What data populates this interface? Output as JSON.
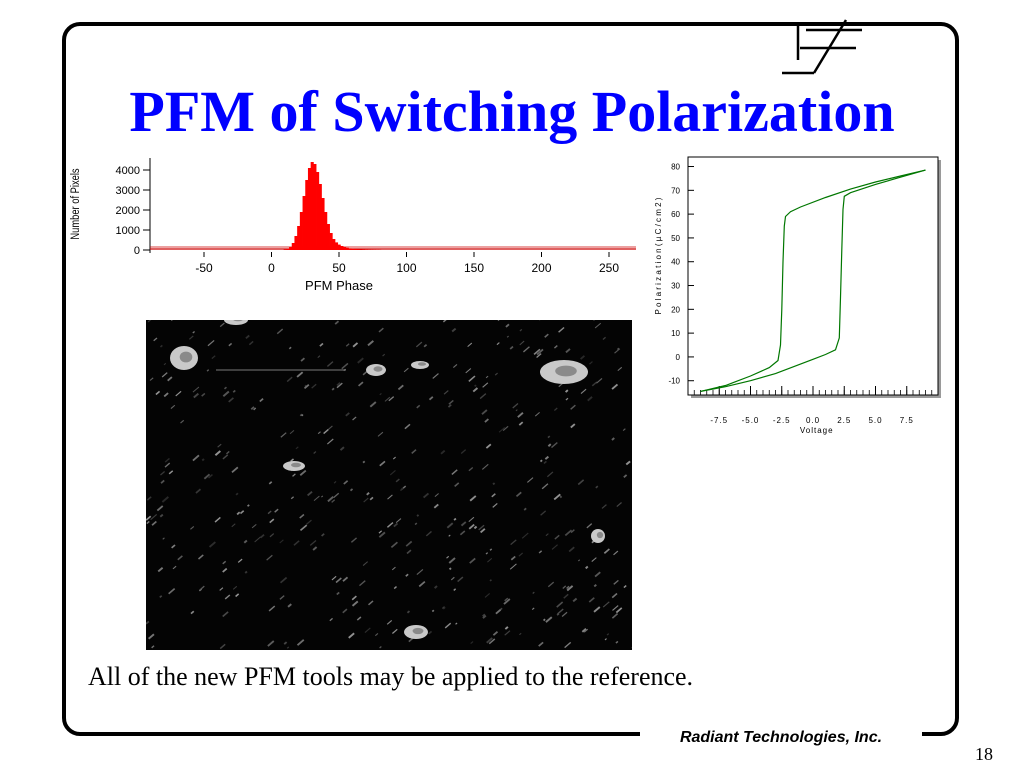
{
  "slide": {
    "title": "PFM of Switching Polarization",
    "caption": "All of the new PFM tools may be applied to the reference.",
    "footer": "Radiant Technologies, Inc.",
    "page_number": "18",
    "title_color": "#0000ff",
    "logo_icon": "ferroelectric-capacitor-icon",
    "image_description_icon": "pfm-phase-map-image"
  },
  "chart_data": [
    {
      "type": "bar",
      "xlabel": "PFM Phase",
      "ylabel": "Number of Pixels",
      "x_ticks": [
        "-50",
        "0",
        "50",
        "100",
        "150",
        "200",
        "250"
      ],
      "y_ticks": [
        "0",
        "1000",
        "2000",
        "3000",
        "4000"
      ],
      "xlim": [
        -90,
        270
      ],
      "ylim": [
        0,
        4600
      ],
      "bar_color": "#ff0000",
      "baseline_color": "#cc0000",
      "x": [
        10,
        12,
        14,
        16,
        18,
        20,
        22,
        24,
        26,
        28,
        30,
        32,
        34,
        36,
        38,
        40,
        42,
        44,
        46,
        48,
        50,
        52,
        54,
        56,
        58,
        60,
        62,
        64,
        66,
        68,
        70,
        72,
        74,
        76,
        78,
        80
      ],
      "values": [
        20,
        60,
        150,
        350,
        700,
        1200,
        1900,
        2700,
        3500,
        4100,
        4400,
        4300,
        3900,
        3300,
        2600,
        1900,
        1300,
        850,
        550,
        380,
        270,
        200,
        150,
        110,
        80,
        60,
        45,
        35,
        25,
        20,
        15,
        12,
        10,
        8,
        6,
        5
      ]
    },
    {
      "type": "line",
      "xlabel": "Voltage",
      "ylabel": "P o l a r i z a t i o n   ( µ C / c m 2 )",
      "x_ticks": [
        "-7.5",
        "-5.0",
        "-2.5",
        "0.0",
        "2.5",
        "5.0",
        "7.5"
      ],
      "y_ticks": [
        "-10",
        "0",
        "10",
        "20",
        "30",
        "40",
        "50",
        "60",
        "70",
        "80"
      ],
      "xlim": [
        -10,
        10
      ],
      "ylim": [
        -16,
        84
      ],
      "line_color": "#007700",
      "series": [
        {
          "x": [
            9.0,
            7.0,
            5.0,
            3.0,
            1.0,
            -1.0,
            -1.8,
            -2.2,
            -2.3,
            -2.4,
            -2.5,
            -2.6,
            -2.8,
            -3.5,
            -5.0,
            -7.0,
            -9.0
          ],
          "values": [
            78.5,
            76.0,
            73.5,
            70.5,
            67.0,
            63.0,
            61.0,
            59.0,
            55.0,
            40.0,
            20.0,
            5.0,
            -1.5,
            -4.5,
            -8.0,
            -12.0,
            -14.5
          ]
        },
        {
          "x": [
            -9.0,
            -7.0,
            -5.0,
            -3.0,
            -1.0,
            0.0,
            1.0,
            1.8,
            2.1,
            2.2,
            2.3,
            2.4,
            2.5,
            3.0,
            5.0,
            7.0,
            9.0
          ],
          "values": [
            -14.5,
            -12.5,
            -10.0,
            -7.0,
            -3.0,
            -1.0,
            1.0,
            3.0,
            8.0,
            25.0,
            45.0,
            62.0,
            67.5,
            69.0,
            72.5,
            75.5,
            78.5
          ]
        }
      ]
    }
  ]
}
